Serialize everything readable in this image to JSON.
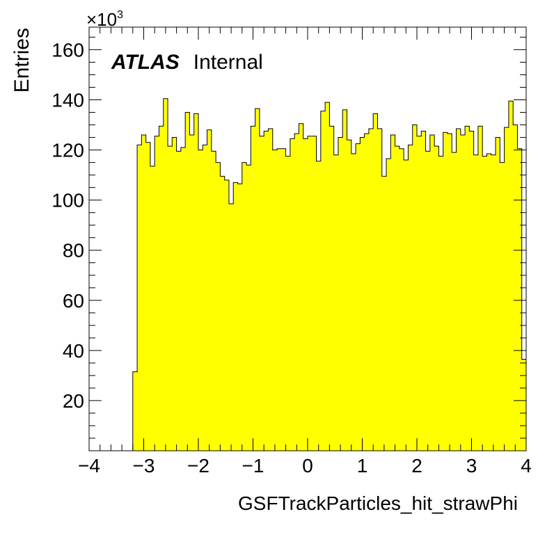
{
  "chart_data": {
    "type": "histogram",
    "title": "",
    "xlabel": "GSFTrackParticles_hit_strawPhi",
    "ylabel": "Entries",
    "y_multiplier": "×10",
    "y_multiplier_exp": "3",
    "xlim": [
      -4,
      4
    ],
    "ylim": [
      0,
      169
    ],
    "x_ticks": [
      -4,
      -3,
      -2,
      -1,
      0,
      1,
      2,
      3,
      4
    ],
    "x_tick_labels": [
      "−4",
      "−3",
      "−2",
      "−1",
      "0",
      "1",
      "2",
      "3",
      "4"
    ],
    "y_ticks": [
      20,
      40,
      60,
      80,
      100,
      120,
      140,
      160
    ],
    "y_tick_labels": [
      "20",
      "40",
      "60",
      "80",
      "100",
      "120",
      "140",
      "160"
    ],
    "bin_width": 0.08,
    "x_start": -3.2,
    "values": [
      31.5,
      122,
      126,
      123,
      113.5,
      125.5,
      129.5,
      140.5,
      121.5,
      125,
      119.5,
      121,
      135,
      126,
      134.5,
      120,
      122,
      128,
      119.5,
      115,
      109.5,
      108,
      98.5,
      107,
      106.5,
      115,
      114,
      129.5,
      136.5,
      125.5,
      127.5,
      128.5,
      120,
      120.5,
      120.5,
      117.5,
      124.5,
      126.5,
      130.5,
      124.5,
      125.5,
      125.5,
      115.5,
      135.5,
      139,
      129.5,
      118,
      125,
      136,
      124,
      118.5,
      122.5,
      125,
      126.5,
      128.5,
      134.5,
      128.5,
      109.5,
      116.5,
      126,
      121.5,
      120.5,
      116,
      122,
      130,
      125.5,
      127.5,
      119.5,
      126,
      121.5,
      117.5,
      127,
      126.5,
      119,
      128.5,
      126,
      129.5,
      127.5,
      118,
      129.5,
      117.5,
      118.5,
      118,
      125,
      115,
      129,
      139.5,
      130,
      120.5,
      36.5
    ],
    "fill_color": "#ffff00",
    "line_color": "#000000",
    "grid": false,
    "legend": "none",
    "annotation": {
      "bold": "ATLAS",
      "normal": "Internal",
      "position": "top-left"
    }
  }
}
